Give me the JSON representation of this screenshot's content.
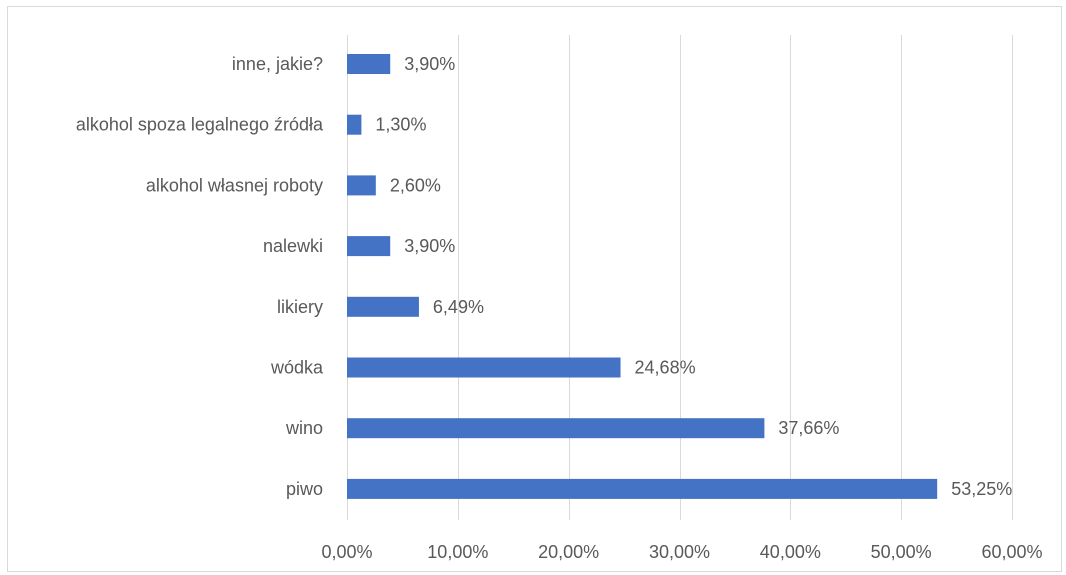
{
  "chart_data": {
    "type": "bar",
    "orientation": "horizontal",
    "categories": [
      "inne, jakie?",
      "alkohol spoza legalnego źródła",
      "alkohol własnej roboty",
      "nalewki",
      "likiery",
      "wódka",
      "wino",
      "piwo"
    ],
    "values": [
      3.9,
      1.3,
      2.6,
      3.9,
      6.49,
      24.68,
      37.66,
      53.25
    ],
    "value_labels": [
      "3,90%",
      "1,30%",
      "2,60%",
      "3,90%",
      "6,49%",
      "24,68%",
      "37,66%",
      "53,25%"
    ],
    "x_ticks": [
      0,
      10,
      20,
      30,
      40,
      50,
      60
    ],
    "x_tick_labels": [
      "0,00%",
      "10,00%",
      "20,00%",
      "30,00%",
      "40,00%",
      "50,00%",
      "60,00%"
    ],
    "xlim": [
      0,
      60
    ],
    "grid": true,
    "legend": false,
    "bar_color": "#4472c4",
    "grid_color": "#d9d9d9",
    "text_color": "#595959"
  }
}
